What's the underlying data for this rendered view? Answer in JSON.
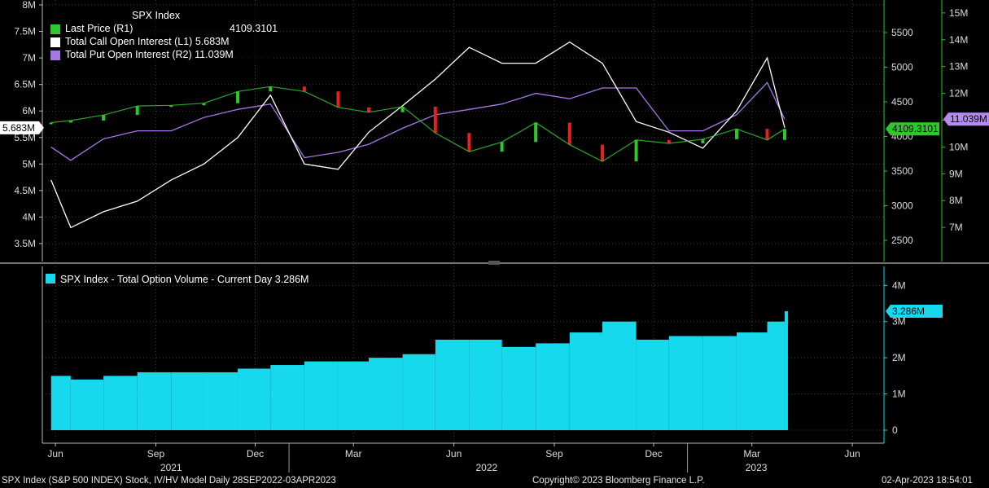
{
  "footer": {
    "left": "SPX Index (S&P 500 INDEX) Stock, IV/HV Model  Daily 28SEP2022-03APR2023",
    "center": "Copyright© 2023 Bloomberg Finance L.P.",
    "right": "02-Apr-2023 18:54:01"
  },
  "colors": {
    "price_up": "#2ec72e",
    "price_down": "#e8201c",
    "call_oi": "#ffffff",
    "put_oi": "#a777e6",
    "volume": "#17d9ed",
    "axis_green": "#2ec72e",
    "axis_purple": "#a777e6",
    "axis_cyan": "#17d9ed"
  },
  "chart_data": [
    {
      "type": "line",
      "panel": "top",
      "title": "SPX Index",
      "x": [
        "2021-05-28",
        "2021-06-15",
        "2021-07-15",
        "2021-08-15",
        "2021-09-15",
        "2021-10-15",
        "2021-11-15",
        "2021-12-15",
        "2022-01-15",
        "2022-02-15",
        "2022-03-15",
        "2022-04-15",
        "2022-05-15",
        "2022-06-15",
        "2022-07-15",
        "2022-08-15",
        "2022-09-15",
        "2022-10-15",
        "2022-11-15",
        "2022-12-15",
        "2023-01-15",
        "2023-02-15",
        "2023-03-15",
        "2023-03-31"
      ],
      "series": [
        {
          "name": "Last Price",
          "axis": "R1",
          "label_value": "4109.3101",
          "values": [
            4200,
            4230,
            4310,
            4440,
            4450,
            4480,
            4650,
            4720,
            4650,
            4420,
            4350,
            4430,
            4050,
            3780,
            3920,
            4200,
            3880,
            3640,
            3950,
            3900,
            3960,
            4110,
            3950,
            4109
          ]
        },
        {
          "name": "Total Call Open Interest",
          "axis": "L1",
          "label_value": "5.683M",
          "values": [
            4.7,
            3.8,
            4.1,
            4.3,
            4.7,
            5.0,
            5.5,
            6.3,
            5.0,
            4.9,
            5.6,
            6.1,
            6.6,
            7.2,
            6.9,
            6.9,
            7.3,
            6.9,
            5.8,
            5.6,
            5.3,
            6.0,
            7.0,
            5.683
          ]
        },
        {
          "name": "Total Put Open Interest",
          "axis": "R2",
          "label_value": "11.039M",
          "values": [
            10.0,
            9.5,
            10.3,
            10.6,
            10.6,
            11.1,
            11.4,
            11.6,
            9.6,
            9.8,
            10.1,
            10.7,
            11.2,
            11.4,
            11.6,
            12.0,
            11.8,
            12.2,
            12.2,
            10.6,
            10.6,
            11.2,
            12.4,
            11.039
          ]
        }
      ],
      "axes": {
        "L1": {
          "ticks": [
            "3.5M",
            "4M",
            "4.5M",
            "5M",
            "5.5M",
            "6M",
            "6.5M",
            "7M",
            "7.5M",
            "8M"
          ],
          "range": [
            3.3,
            8.0
          ]
        },
        "R1": {
          "ticks": [
            "2500",
            "3000",
            "3500",
            "4000",
            "4500",
            "5000",
            "5500"
          ],
          "range": [
            2300,
            5900
          ]
        },
        "R2": {
          "ticks": [
            "7M",
            "8M",
            "9M",
            "10M",
            "11M",
            "12M",
            "13M",
            "14M",
            "15M"
          ],
          "range": [
            6.0,
            15.3
          ]
        }
      }
    },
    {
      "type": "bar",
      "panel": "bottom",
      "title": "SPX Index - Total Option Volume - Current Day 3.286M",
      "x": [
        "2021-05-28",
        "2021-06-15",
        "2021-07-15",
        "2021-08-15",
        "2021-09-15",
        "2021-10-15",
        "2021-11-15",
        "2021-12-15",
        "2022-01-15",
        "2022-02-15",
        "2022-03-15",
        "2022-04-15",
        "2022-05-15",
        "2022-06-15",
        "2022-07-15",
        "2022-08-15",
        "2022-09-15",
        "2022-10-15",
        "2022-11-15",
        "2022-12-15",
        "2023-01-15",
        "2023-02-15",
        "2023-03-15",
        "2023-03-31"
      ],
      "series": [
        {
          "name": "Total Option Volume",
          "label_value": "3.286M",
          "values": [
            1.5,
            1.4,
            1.5,
            1.6,
            1.6,
            1.6,
            1.7,
            1.8,
            1.9,
            1.9,
            2.0,
            2.1,
            2.5,
            2.5,
            2.3,
            2.4,
            2.7,
            3.0,
            2.5,
            2.6,
            2.6,
            2.7,
            3.0,
            3.286
          ]
        }
      ],
      "axes": {
        "ticks": [
          "0",
          "1M",
          "2M",
          "3M",
          "4M"
        ],
        "range": [
          0,
          4.3
        ]
      }
    }
  ],
  "x_axis": {
    "months": [
      {
        "label": "Jun",
        "date": "2021-06-01"
      },
      {
        "label": "Sep",
        "date": "2021-09-01"
      },
      {
        "label": "Dec",
        "date": "2021-12-01"
      },
      {
        "label": "Mar",
        "date": "2022-03-01"
      },
      {
        "label": "Jun",
        "date": "2022-06-01"
      },
      {
        "label": "Sep",
        "date": "2022-09-01"
      },
      {
        "label": "Dec",
        "date": "2022-12-01"
      },
      {
        "label": "Mar",
        "date": "2023-03-01"
      },
      {
        "label": "Jun",
        "date": "2023-06-01"
      }
    ],
    "years": [
      {
        "label": "2021",
        "date": "2021-09-15"
      },
      {
        "label": "2022",
        "date": "2022-07-01"
      },
      {
        "label": "2023",
        "date": "2023-03-05"
      }
    ],
    "range": [
      "2021-05-20",
      "2023-06-30"
    ]
  }
}
